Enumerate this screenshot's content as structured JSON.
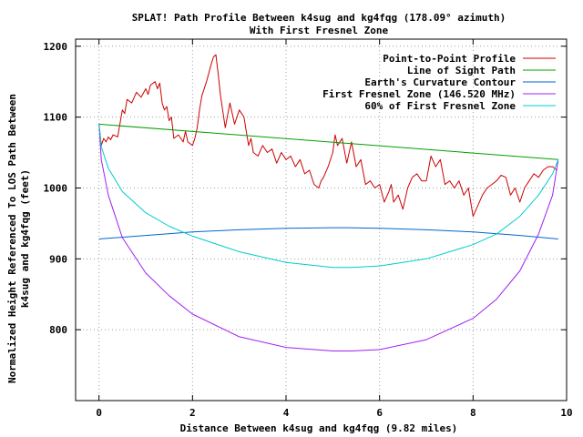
{
  "chart_data": {
    "type": "line",
    "title": "SPLAT! Path Profile Between k4sug and kg4fqg (178.09° azimuth)",
    "subtitle": "With First Fresnel Zone",
    "xlabel": "Distance Between k4sug and kg4fqg (9.82 miles)",
    "ylabel_line1": "Normalized Height Referenced To LOS Path Between",
    "ylabel_line2": "k4sug and kg4fqg (feet)",
    "xlim": [
      -0.5,
      10
    ],
    "ylim": [
      700,
      1210
    ],
    "x_ticks": [
      0,
      2,
      4,
      6,
      8,
      10
    ],
    "x_tick_labels": [
      "0",
      "2",
      "4",
      "6",
      "8",
      "10"
    ],
    "y_ticks": [
      800,
      900,
      1000,
      1100,
      1200
    ],
    "y_tick_labels": [
      "800",
      "900",
      "1000",
      "1100",
      "1200"
    ],
    "grid": true,
    "legend_position": "top-right",
    "series": [
      {
        "name": "Point-to-Point Profile",
        "color": "#cc0000",
        "x": [
          0,
          0.05,
          0.1,
          0.15,
          0.2,
          0.25,
          0.3,
          0.4,
          0.5,
          0.55,
          0.6,
          0.7,
          0.8,
          0.9,
          1.0,
          1.05,
          1.1,
          1.2,
          1.25,
          1.3,
          1.35,
          1.4,
          1.45,
          1.5,
          1.55,
          1.6,
          1.7,
          1.8,
          1.85,
          1.9,
          2.0,
          2.05,
          2.1,
          2.15,
          2.2,
          2.3,
          2.4,
          2.45,
          2.5,
          2.55,
          2.6,
          2.7,
          2.8,
          2.9,
          3.0,
          3.1,
          3.2,
          3.25,
          3.3,
          3.4,
          3.5,
          3.6,
          3.7,
          3.8,
          3.9,
          4.0,
          4.1,
          4.2,
          4.3,
          4.4,
          4.5,
          4.6,
          4.7,
          4.75,
          4.8,
          4.9,
          5.0,
          5.05,
          5.1,
          5.2,
          5.3,
          5.4,
          5.5,
          5.6,
          5.7,
          5.8,
          5.9,
          6.0,
          6.1,
          6.2,
          6.25,
          6.3,
          6.4,
          6.5,
          6.6,
          6.7,
          6.8,
          6.9,
          7.0,
          7.1,
          7.2,
          7.3,
          7.4,
          7.5,
          7.6,
          7.7,
          7.8,
          7.9,
          8.0,
          8.1,
          8.2,
          8.3,
          8.4,
          8.5,
          8.6,
          8.7,
          8.8,
          8.9,
          9.0,
          9.1,
          9.2,
          9.3,
          9.4,
          9.5,
          9.6,
          9.7,
          9.8
        ],
        "y": [
          1090,
          1060,
          1070,
          1065,
          1072,
          1068,
          1075,
          1072,
          1110,
          1105,
          1125,
          1120,
          1135,
          1128,
          1140,
          1132,
          1145,
          1150,
          1140,
          1148,
          1120,
          1110,
          1115,
          1095,
          1100,
          1070,
          1075,
          1065,
          1080,
          1065,
          1060,
          1070,
          1085,
          1110,
          1130,
          1150,
          1175,
          1185,
          1188,
          1160,
          1130,
          1085,
          1120,
          1090,
          1110,
          1100,
          1060,
          1070,
          1050,
          1045,
          1060,
          1050,
          1055,
          1035,
          1050,
          1040,
          1045,
          1030,
          1040,
          1020,
          1025,
          1005,
          1000,
          1010,
          1015,
          1030,
          1050,
          1075,
          1060,
          1070,
          1035,
          1065,
          1030,
          1040,
          1005,
          1010,
          1000,
          1005,
          980,
          995,
          1005,
          980,
          990,
          970,
          1000,
          1015,
          1020,
          1010,
          1010,
          1045,
          1030,
          1040,
          1005,
          1010,
          1000,
          1010,
          990,
          1000,
          960,
          975,
          990,
          1000,
          1005,
          1010,
          1018,
          1015,
          990,
          1000,
          980,
          1000,
          1010,
          1020,
          1015,
          1025,
          1030,
          1030,
          1025
        ]
      },
      {
        "name": "Line of Sight Path",
        "color": "#00a000",
        "x": [
          0,
          9.82
        ],
        "y": [
          1090,
          1040
        ]
      },
      {
        "name": "Earth's Curvature Contour",
        "color": "#0066cc",
        "x": [
          0,
          1,
          2,
          3,
          4,
          5,
          5.3,
          6,
          7,
          8,
          9,
          9.82
        ],
        "y": [
          928,
          933,
          938,
          941,
          943,
          944,
          944,
          943,
          941,
          938,
          933,
          928
        ]
      },
      {
        "name": "First Fresnel Zone (146.520 MHz)",
        "color": "#a020f0",
        "x": [
          0,
          0.05,
          0.2,
          0.5,
          1,
          1.5,
          2,
          3,
          4,
          5,
          5.4,
          6,
          7,
          8,
          8.5,
          9,
          9.4,
          9.7,
          9.82
        ],
        "y": [
          1090,
          1040,
          990,
          930,
          880,
          848,
          822,
          790,
          775,
          770,
          770,
          772,
          786,
          816,
          843,
          883,
          935,
          990,
          1040
        ]
      },
      {
        "name": "60% of First Fresnel Zone",
        "color": "#00cccc",
        "x": [
          0,
          0.05,
          0.2,
          0.5,
          1,
          1.5,
          2,
          3,
          4,
          5,
          5.4,
          6,
          7,
          8,
          8.5,
          9,
          9.4,
          9.7,
          9.82
        ],
        "y": [
          1090,
          1058,
          1028,
          995,
          965,
          946,
          932,
          910,
          895,
          888,
          888,
          890,
          900,
          920,
          935,
          960,
          990,
          1020,
          1040
        ]
      }
    ]
  }
}
